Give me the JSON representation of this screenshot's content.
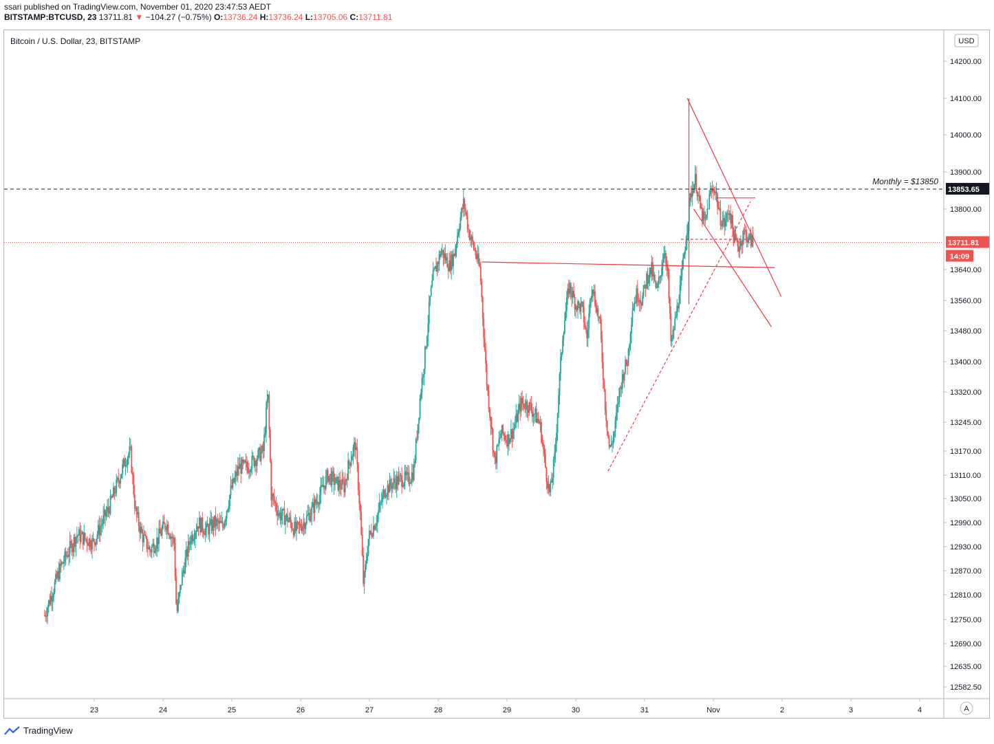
{
  "header": {
    "published_line": "ssari published on TradingView.com, November 01, 2020 23:47:53 AEDT",
    "symbol": "BITSTAMP:BTCUSD, 23",
    "last": "13711.81",
    "change": "−104.27 (−0.75%)",
    "o_label": "O:",
    "o_value": "13736.24",
    "h_label": "H:",
    "h_value": "13736.24",
    "l_label": "L:",
    "l_value": "13705.06",
    "c_label": "C:",
    "c_value": "13711.81"
  },
  "chart_title": "Bitcoin / U.S. Dollar, 23, BITSTAMP",
  "currency_button": "USD",
  "auto_button": "A",
  "footer_brand": "TradingView",
  "colors": {
    "up": "#26a69a",
    "down": "#ef5350",
    "drawing": "#f23645",
    "text": "#131722"
  },
  "chart_data": {
    "type": "candlestick",
    "title": "Bitcoin / U.S. Dollar, 23, BITSTAMP",
    "ylim": [
      12540,
      14290
    ],
    "y_ticks": [
      "14200.00",
      "14100.00",
      "14000.00",
      "13900.00",
      "13800.00",
      "13640.00",
      "13560.00",
      "13480.00",
      "13400.00",
      "13320.00",
      "13245.00",
      "13170.00",
      "13110.00",
      "13050.00",
      "12990.00",
      "12930.00",
      "12870.00",
      "12810.00",
      "12750.00",
      "12690.00",
      "12635.00",
      "12582.50"
    ],
    "x_ticks": [
      "23",
      "24",
      "25",
      "26",
      "27",
      "28",
      "29",
      "30",
      "31",
      "Nov",
      "2",
      "3",
      "4"
    ],
    "close_path": [
      [
        0,
        12760
      ],
      [
        1,
        12880
      ],
      [
        2,
        12960
      ],
      [
        3,
        12940
      ],
      [
        4,
        13030
      ],
      [
        5,
        13150
      ],
      [
        5.3,
        13170
      ],
      [
        5.6,
        13020
      ],
      [
        6,
        12960
      ],
      [
        6.5,
        12920
      ],
      [
        7,
        12950
      ],
      [
        7.5,
        12990
      ],
      [
        8,
        12940
      ],
      [
        8.15,
        12760
      ],
      [
        8.5,
        12860
      ],
      [
        9,
        12950
      ],
      [
        9.5,
        12990
      ],
      [
        10,
        12970
      ],
      [
        10.5,
        12990
      ],
      [
        11,
        12980
      ],
      [
        11.5,
        13070
      ],
      [
        12,
        13130
      ],
      [
        12.5,
        13130
      ],
      [
        13,
        13150
      ],
      [
        13.5,
        13170
      ],
      [
        13.8,
        13320
      ],
      [
        14,
        13060
      ],
      [
        14.5,
        13010
      ],
      [
        15,
        13000
      ],
      [
        15.5,
        12970
      ],
      [
        16,
        12990
      ],
      [
        16.5,
        13020
      ],
      [
        17,
        13060
      ],
      [
        17.5,
        13110
      ],
      [
        18,
        13090
      ],
      [
        18.5,
        13080
      ],
      [
        18.8,
        13140
      ],
      [
        19.2,
        13190
      ],
      [
        19.5,
        13010
      ],
      [
        19.7,
        12830
      ],
      [
        20,
        12950
      ],
      [
        20.5,
        13000
      ],
      [
        21,
        13070
      ],
      [
        21.5,
        13090
      ],
      [
        22,
        13100
      ],
      [
        22.5,
        13100
      ],
      [
        22.8,
        13120
      ],
      [
        23.2,
        13310
      ],
      [
        23.5,
        13420
      ],
      [
        23.8,
        13560
      ],
      [
        24,
        13620
      ],
      [
        24.5,
        13690
      ],
      [
        25,
        13650
      ],
      [
        25.3,
        13680
      ],
      [
        25.6,
        13760
      ],
      [
        25.9,
        13820
      ],
      [
        26.2,
        13740
      ],
      [
        26.5,
        13700
      ],
      [
        26.9,
        13640
      ],
      [
        27.3,
        13350
      ],
      [
        27.6,
        13230
      ],
      [
        27.8,
        13140
      ],
      [
        28.2,
        13220
      ],
      [
        28.6,
        13200
      ],
      [
        29,
        13230
      ],
      [
        29.4,
        13290
      ],
      [
        29.8,
        13290
      ],
      [
        30.2,
        13270
      ],
      [
        30.6,
        13240
      ],
      [
        31,
        13110
      ],
      [
        31.2,
        13060
      ],
      [
        31.5,
        13150
      ],
      [
        31.8,
        13350
      ],
      [
        32,
        13470
      ],
      [
        32.4,
        13600
      ],
      [
        32.8,
        13550
      ],
      [
        33.2,
        13540
      ],
      [
        33.5,
        13460
      ],
      [
        33.8,
        13610
      ],
      [
        34,
        13560
      ],
      [
        34.3,
        13500
      ],
      [
        34.6,
        13300
      ],
      [
        34.9,
        13170
      ],
      [
        35.2,
        13220
      ],
      [
        35.5,
        13320
      ],
      [
        35.8,
        13380
      ],
      [
        36,
        13400
      ],
      [
        36.3,
        13540
      ],
      [
        36.6,
        13580
      ],
      [
        36.9,
        13560
      ],
      [
        37.2,
        13620
      ],
      [
        37.5,
        13640
      ],
      [
        37.8,
        13580
      ],
      [
        38,
        13620
      ],
      [
        38.3,
        13700
      ],
      [
        38.5,
        13620
      ],
      [
        38.7,
        13440
      ],
      [
        39,
        13520
      ],
      [
        39.3,
        13600
      ],
      [
        39.6,
        13720
      ],
      [
        39.9,
        13840
      ],
      [
        40.2,
        13880
      ],
      [
        40.5,
        13800
      ],
      [
        40.8,
        13760
      ],
      [
        41.1,
        13840
      ],
      [
        41.4,
        13860
      ],
      [
        41.7,
        13780
      ],
      [
        42,
        13760
      ],
      [
        42.3,
        13800
      ],
      [
        42.6,
        13720
      ],
      [
        42.9,
        13700
      ],
      [
        43.2,
        13740
      ],
      [
        43.5,
        13720
      ],
      [
        43.8,
        13711.81
      ]
    ],
    "x_domain": [
      -2.5,
      55.5
    ],
    "annotations": [
      "Monthly = $13850"
    ],
    "price_labels": {
      "monthly_level": "13853.65",
      "last_price": "13711.81",
      "countdown": "14:09"
    },
    "levels": {
      "monthly": 13853.65,
      "last": 13711.81
    },
    "grid": false
  }
}
